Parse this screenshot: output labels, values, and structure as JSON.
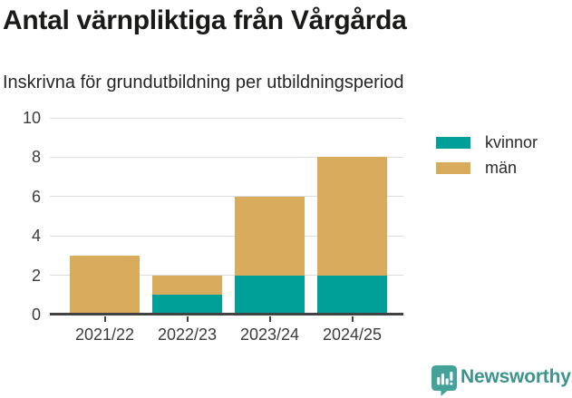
{
  "chart_data": {
    "type": "bar",
    "stacked": true,
    "title": "Antal värnpliktiga från Vårgårda",
    "subtitle": "Inskrivna för grundutbildning per utbildningsperiod",
    "categories": [
      "2021/22",
      "2022/23",
      "2023/24",
      "2024/25"
    ],
    "series": [
      {
        "name": "kvinnor",
        "color": "#00A099",
        "values": [
          0,
          1,
          2,
          2
        ]
      },
      {
        "name": "män",
        "color": "#D8AC5C",
        "values": [
          3,
          1,
          4,
          6
        ]
      }
    ],
    "stacked_totals": [
      3,
      2,
      6,
      8
    ],
    "xlabel": "",
    "ylabel": "",
    "ylim": [
      0,
      10
    ],
    "yticks": [
      0,
      2,
      4,
      6,
      8,
      10
    ],
    "grid": true,
    "legend_position": "right",
    "colors": {
      "gridline": "#dcdcdc",
      "axis": "#424242",
      "tick_label": "#3b3b3b"
    }
  },
  "footer": {
    "brand": "Newsworthy",
    "brand_color": "#3E948D",
    "icon_color": "#45A29A",
    "logo_icon": "newsworthy-bar-chart-bubble-icon"
  }
}
